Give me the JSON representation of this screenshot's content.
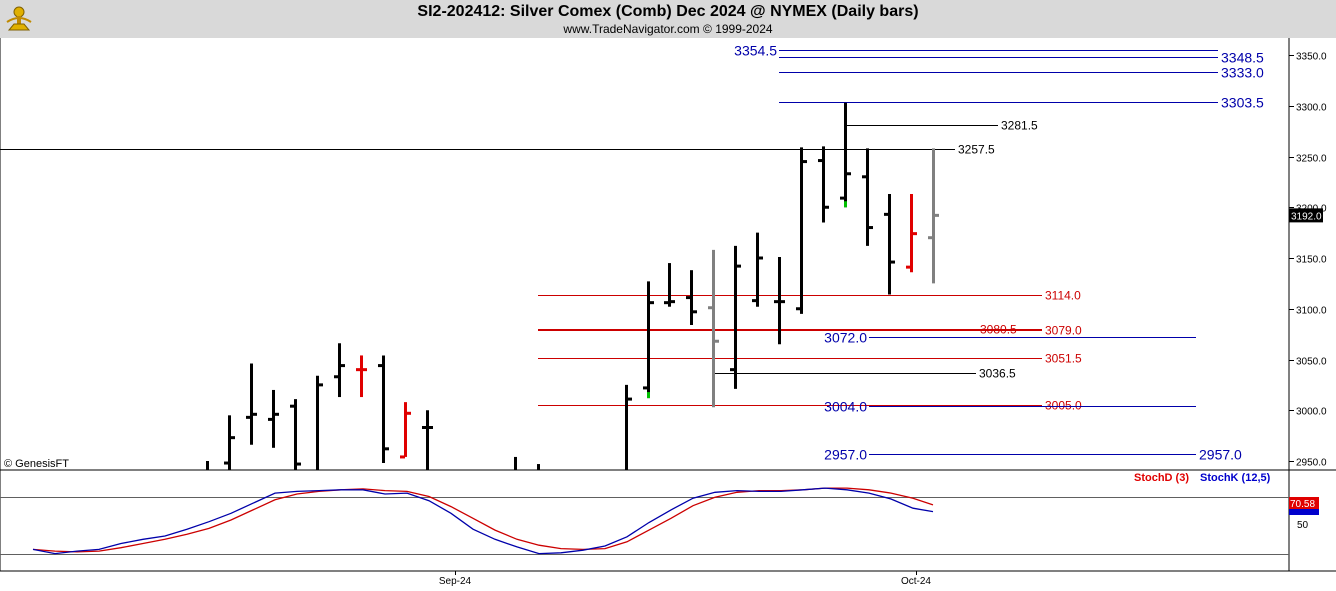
{
  "header": {
    "title": "SI2-202412:  Silver Comex (Comb) Dec 2024 @ NYMEX  (Daily bars)",
    "subtitle": "www.TradeNavigator.com © 1999-2024"
  },
  "footer": {
    "credit": "© GenesisFT"
  },
  "colors": {
    "up_bar": "#000000",
    "down_bar": "#e00000",
    "neutral_bar": "#808080",
    "green_tick": "#00c000",
    "stochd": "#e00000",
    "stochk": "#0000cc",
    "red_line": "#cc0000",
    "blue_line": "#0000aa",
    "black_line": "#000000"
  },
  "chart_data": [
    {
      "type": "ohlc",
      "y_axis_side": "right",
      "ylim": [
        2935,
        3370
      ],
      "yticks": [
        "3350.0",
        "3300.0",
        "3250.0",
        "3200.0",
        "3150.0",
        "3100.0",
        "3050.0",
        "3000.0",
        "2950.0"
      ],
      "last_price_label": "3192.0",
      "x_labels": [
        "Sep-24",
        "Oct-24"
      ],
      "bars": [
        {
          "x": 207,
          "h": 2950,
          "l": 2935,
          "o": 2935,
          "c": 2935,
          "color": "black"
        },
        {
          "x": 229,
          "h": 2995,
          "l": 2935,
          "o": 2948,
          "c": 2973,
          "color": "black"
        },
        {
          "x": 251,
          "h": 3046,
          "l": 2966,
          "o": 2993,
          "c": 2996,
          "color": "black"
        },
        {
          "x": 273,
          "h": 3020,
          "l": 2963,
          "o": 2991,
          "c": 2996,
          "color": "black"
        },
        {
          "x": 295,
          "h": 3011,
          "l": 2935,
          "o": 3004,
          "c": 2947,
          "color": "black"
        },
        {
          "x": 317,
          "h": 3034,
          "l": 2935,
          "o": 2940,
          "c": 3025,
          "color": "black"
        },
        {
          "x": 339,
          "h": 3066,
          "l": 3013,
          "o": 3033,
          "c": 3044,
          "color": "black"
        },
        {
          "x": 361,
          "h": 3054,
          "l": 3013,
          "o": 3040,
          "c": 3040,
          "color": "red"
        },
        {
          "x": 383,
          "h": 3054,
          "l": 2948,
          "o": 3044,
          "c": 2962,
          "color": "black"
        },
        {
          "x": 405,
          "h": 3008,
          "l": 2954,
          "o": 2954,
          "c": 2997,
          "color": "red"
        },
        {
          "x": 427,
          "h": 3000,
          "l": 2935,
          "o": 2983,
          "c": 2983,
          "color": "black"
        },
        {
          "x": 515,
          "h": 2954,
          "l": 2935,
          "o": 2935,
          "c": 2935,
          "color": "black"
        },
        {
          "x": 538,
          "h": 2947,
          "l": 2935,
          "o": 2935,
          "c": 2935,
          "color": "black"
        },
        {
          "x": 626,
          "h": 3025,
          "l": 2935,
          "o": 2935,
          "c": 3011,
          "color": "black"
        },
        {
          "x": 648,
          "h": 3127,
          "l": 3012,
          "o": 3022,
          "c": 3106,
          "color": "black",
          "green_low": true
        },
        {
          "x": 669,
          "h": 3145,
          "l": 3102,
          "o": 3106,
          "c": 3107,
          "color": "black"
        },
        {
          "x": 691,
          "h": 3138,
          "l": 3084,
          "o": 3111,
          "c": 3097,
          "color": "black"
        },
        {
          "x": 713,
          "h": 3158,
          "l": 3003,
          "o": 3101,
          "c": 3068,
          "color": "gray"
        },
        {
          "x": 735,
          "h": 3162,
          "l": 3021,
          "o": 3040,
          "c": 3142,
          "color": "black"
        },
        {
          "x": 757,
          "h": 3175,
          "l": 3102,
          "o": 3108,
          "c": 3150,
          "color": "black"
        },
        {
          "x": 779,
          "h": 3151,
          "l": 3065,
          "o": 3107,
          "c": 3107,
          "color": "black"
        },
        {
          "x": 801,
          "h": 3259,
          "l": 3095,
          "o": 3100,
          "c": 3245,
          "color": "black"
        },
        {
          "x": 823,
          "h": 3260,
          "l": 3185,
          "o": 3246,
          "c": 3200,
          "color": "black"
        },
        {
          "x": 845,
          "h": 3303,
          "l": 3200,
          "o": 3209,
          "c": 3233,
          "color": "black",
          "green_low": true
        },
        {
          "x": 867,
          "h": 3258,
          "l": 3162,
          "o": 3230,
          "c": 3180,
          "color": "black"
        },
        {
          "x": 889,
          "h": 3213,
          "l": 3114,
          "o": 3193,
          "c": 3146,
          "color": "black"
        },
        {
          "x": 911,
          "h": 3213,
          "l": 3136,
          "o": 3141,
          "c": 3174,
          "color": "red"
        },
        {
          "x": 933,
          "h": 3258,
          "l": 3125,
          "o": 3170,
          "c": 3192,
          "color": "gray"
        }
      ],
      "price_lines": [
        {
          "price": 3354.5,
          "x1": 779,
          "x2": 1218,
          "color": "blue",
          "label": "3354.5",
          "label_pos": "left",
          "label_color": "blue",
          "size": "large"
        },
        {
          "price": 3348.5,
          "x1": 779,
          "x2": 1218,
          "color": "blue",
          "label": "3348.5",
          "label_pos": "right",
          "label_color": "blue",
          "size": "large"
        },
        {
          "price": 3333.0,
          "x1": 779,
          "x2": 1218,
          "color": "blue",
          "label": "3333.0",
          "label_pos": "right",
          "label_color": "blue",
          "size": "large"
        },
        {
          "price": 3303.5,
          "x1": 779,
          "x2": 1218,
          "color": "blue",
          "label": "3303.5",
          "label_pos": "right",
          "label_color": "blue",
          "size": "large"
        },
        {
          "price": 3281.5,
          "x1": 845,
          "x2": 998,
          "color": "black",
          "label": "3281.5",
          "label_pos": "right",
          "label_color": "black",
          "size": "small"
        },
        {
          "price": 3257.5,
          "x1": 0,
          "x2": 955,
          "color": "black",
          "label": "3257.5",
          "label_pos": "right",
          "label_color": "black",
          "size": "small"
        },
        {
          "price": 3114.0,
          "x1": 538,
          "x2": 1042,
          "color": "red",
          "label": "3114.0",
          "label_pos": "right",
          "label_color": "red",
          "size": "small"
        },
        {
          "price": 3080.5,
          "x1": 538,
          "x2": 1042,
          "color": "red",
          "label": "3080.5",
          "label_pos": "inline",
          "label_x": 980,
          "label_color": "red",
          "size": "small"
        },
        {
          "price": 3079.0,
          "x1": 538,
          "x2": 1042,
          "color": "red",
          "label": "3079.0",
          "label_pos": "right",
          "label_color": "red",
          "size": "small"
        },
        {
          "price": 3072.0,
          "x1": 869,
          "x2": 1196,
          "color": "blue",
          "label": "3072.0",
          "label_pos": "left",
          "label_color": "blue",
          "size": "large"
        },
        {
          "price": 3051.5,
          "x1": 538,
          "x2": 1042,
          "color": "red",
          "label": "3051.5",
          "label_pos": "right",
          "label_color": "red",
          "size": "small"
        },
        {
          "price": 3036.5,
          "x1": 713,
          "x2": 976,
          "color": "black",
          "label": "3036.5",
          "label_pos": "right",
          "label_color": "black",
          "size": "small"
        },
        {
          "price": 3005.0,
          "x1": 538,
          "x2": 1042,
          "color": "red",
          "label": "3005.0",
          "label_pos": "right",
          "label_color": "red",
          "size": "small"
        },
        {
          "price": 3004.0,
          "x1": 869,
          "x2": 1196,
          "color": "blue",
          "label": "3004.0",
          "label_pos": "left",
          "label_color": "blue",
          "size": "large"
        },
        {
          "price": 2957.0,
          "x1": 869,
          "x2": 1196,
          "color": "blue",
          "label": "2957.0",
          "label_pos": "both",
          "label_color": "blue",
          "size": "large"
        }
      ]
    },
    {
      "type": "line",
      "ylim": [
        0,
        100
      ],
      "ytick_label": "50",
      "value_labels": [
        "70.58"
      ],
      "series": [
        {
          "name": "StochD (3)",
          "color": "red",
          "points": [
            [
              33,
              15
            ],
            [
              55,
              13
            ],
            [
              77,
              12
            ],
            [
              99,
              13
            ],
            [
              121,
              17
            ],
            [
              143,
              22
            ],
            [
              165,
              27
            ],
            [
              187,
              33
            ],
            [
              209,
              40
            ],
            [
              231,
              50
            ],
            [
              253,
              62
            ],
            [
              275,
              74
            ],
            [
              297,
              81
            ],
            [
              319,
              84
            ],
            [
              341,
              86
            ],
            [
              363,
              87
            ],
            [
              385,
              85
            ],
            [
              407,
              84
            ],
            [
              429,
              78
            ],
            [
              451,
              66
            ],
            [
              473,
              52
            ],
            [
              495,
              38
            ],
            [
              517,
              27
            ],
            [
              539,
              20
            ],
            [
              561,
              16
            ],
            [
              583,
              15
            ],
            [
              605,
              16
            ],
            [
              627,
              24
            ],
            [
              649,
              38
            ],
            [
              671,
              52
            ],
            [
              693,
              67
            ],
            [
              715,
              77
            ],
            [
              737,
              83
            ],
            [
              759,
              85
            ],
            [
              781,
              85
            ],
            [
              803,
              86
            ],
            [
              825,
              88
            ],
            [
              847,
              88
            ],
            [
              869,
              86
            ],
            [
              891,
              82
            ],
            [
              913,
              76
            ],
            [
              933,
              68
            ]
          ]
        },
        {
          "name": "StochK (12,5)",
          "color": "blue",
          "points": [
            [
              33,
              15
            ],
            [
              55,
              10
            ],
            [
              77,
              13
            ],
            [
              99,
              15
            ],
            [
              121,
              22
            ],
            [
              143,
              27
            ],
            [
              165,
              31
            ],
            [
              187,
              39
            ],
            [
              209,
              48
            ],
            [
              231,
              58
            ],
            [
              253,
              70
            ],
            [
              275,
              82
            ],
            [
              297,
              84
            ],
            [
              319,
              85
            ],
            [
              341,
              86
            ],
            [
              363,
              86
            ],
            [
              385,
              81
            ],
            [
              407,
              82
            ],
            [
              429,
              73
            ],
            [
              451,
              58
            ],
            [
              473,
              39
            ],
            [
              495,
              27
            ],
            [
              517,
              18
            ],
            [
              539,
              10
            ],
            [
              561,
              11
            ],
            [
              583,
              14
            ],
            [
              605,
              19
            ],
            [
              627,
              30
            ],
            [
              649,
              47
            ],
            [
              671,
              62
            ],
            [
              693,
              76
            ],
            [
              715,
              83
            ],
            [
              737,
              85
            ],
            [
              759,
              84
            ],
            [
              781,
              84
            ],
            [
              803,
              86
            ],
            [
              825,
              88
            ],
            [
              847,
              86
            ],
            [
              869,
              82
            ],
            [
              891,
              75
            ],
            [
              913,
              64
            ],
            [
              933,
              60
            ]
          ]
        }
      ]
    }
  ]
}
